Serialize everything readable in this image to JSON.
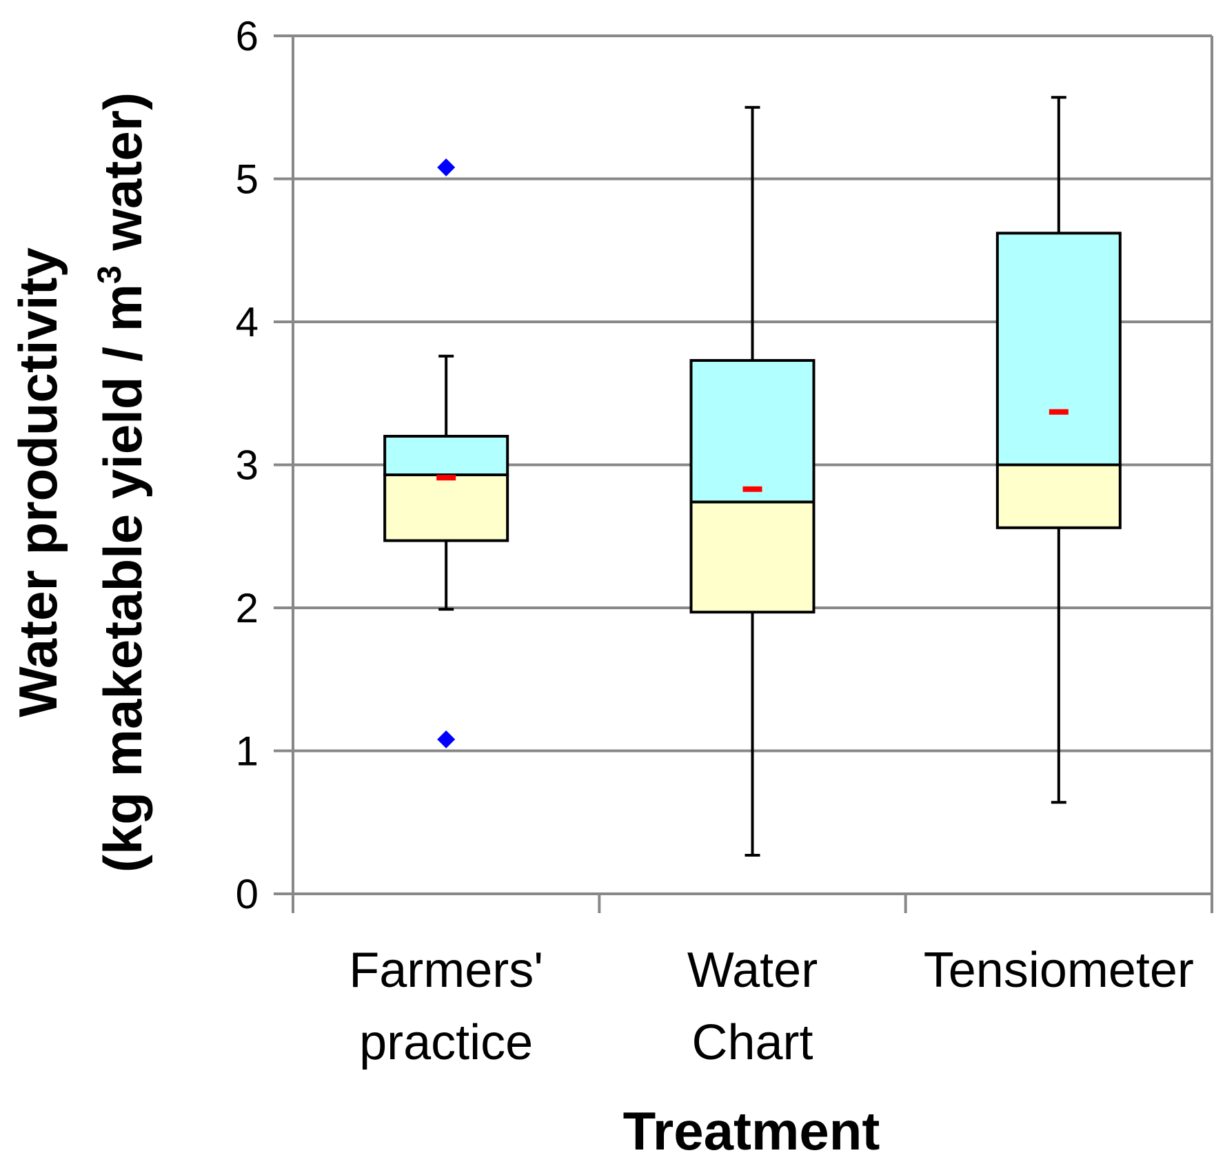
{
  "chart_data": {
    "type": "box",
    "title": "",
    "xlabel": "Treatment",
    "ylabel": {
      "line1": "Water productivity",
      "line2_prefix": "(kg maketable yield / m",
      "line2_sup": "3",
      "line2_suffix": " water)"
    },
    "ylim": [
      0,
      6
    ],
    "yticks": [
      "0",
      "1",
      "2",
      "3",
      "4",
      "5",
      "6"
    ],
    "grid": true,
    "colors": {
      "upper_box": "#b2ffff",
      "lower_box": "#ffffcc",
      "mean_marker": "#ff0000",
      "outlier": "#0000ff",
      "gridline": "#888888",
      "whisker": "#000000"
    },
    "categories": [
      {
        "label_lines": [
          "Farmers'",
          "practice"
        ],
        "min": 1.99,
        "q1": 2.47,
        "median": 2.93,
        "q3": 3.2,
        "max": 3.76,
        "mean": 2.91,
        "outliers": [
          5.08,
          1.08
        ]
      },
      {
        "label_lines": [
          "Water",
          "Chart"
        ],
        "min": 0.27,
        "q1": 1.97,
        "median": 2.74,
        "q3": 3.73,
        "max": 5.5,
        "mean": 2.83,
        "outliers": []
      },
      {
        "label_lines": [
          "Tensiometer"
        ],
        "min": 0.64,
        "q1": 2.56,
        "median": 3.0,
        "q3": 4.62,
        "max": 5.57,
        "mean": 3.37,
        "outliers": []
      }
    ]
  }
}
